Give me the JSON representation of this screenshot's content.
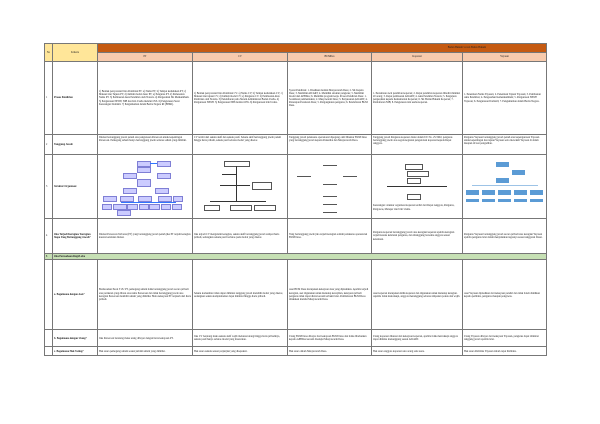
{
  "title": "Badan Hukum vs non Badan Hukum",
  "headers": {
    "no": "No",
    "criteria": "Kriteria",
    "cols": [
      "PT",
      "CV",
      "BUMDes",
      "Koperasi",
      "Yayasan"
    ]
  },
  "rows": [
    {
      "no": "1",
      "criteria": "Proses Pendirian",
      "cells": [
        "1) Bentuk persyaratan Data Pendirian PT: a) Nama PT; b) Tempat kedudukan PT; c) Maksud dan Tujuan PT; d) Jumlah modal dasar PT; e) Pengurus PT. 2) Pemesanan Nama PT. 3) Pembuatan Akta Pendirian oleh Notaris. 4) Pengesahan SK Menkumham. 5) Pengurusan NPWP, NIB dan Izin Usaha melalui OSS. 6) Pengurusan Surat Keterangan Domisili. 7) Pengumuman dalam Berita Negara RI (BNRI).",
        "1) Bentuk persyaratan Data Pendirian CV: a) Nama CV; b) Tempat kedudukan CV; c) Maksud dan tujuan CV; d) Jumlah modal CV; e) Pengurus CV. 2) Pembuatan Akta Pendirian oleh Notaris. 3) Pendaftaran pada Sistem Administrasi Badan Usaha. 4) Pengurusan NPWP. 5) Pengurusan NIB melalui OSS. 6) Pengurusan Izin Usaha.",
        "Syarat Pendirian: 1. Disahkan melalui Musyawarah Desa; 2. SK Kepala Desa; 3. Memiliki AD/ART; 4. Memiliki struktur pengurus; 5. Memiliki modal dari APBDes; 6. Memiliki program kerja. Proses Pendirian Desa: 1. Sosialisasi pembentukan; 2. Musyawarah Desa; 3. Penyusunan AD/ART; 4. Penetapan Peraturan Desa; 5. Pengangkatan pengurus; 6. Pendaftaran BUM Desa.",
        "1. Pertemuan awal pendirian koperasi; 2. Rapat pendirian koperasi dihadiri minimal 20 orang; 3. Rapat pembuatan AD/ART; 4. Akta Pendirian Notaris; 5. Pengajuan pengesahan kepada Kementerian Koperasi; 6. SK Badan Hukum Koperasi; 7. Pendaftaran NIB; 8. Pengurusan izin usaha koperasi.",
        "1. Penentuan Nama Yayasan; 2. Penentuan Tujuan Yayasan; 3. Pembuatan Akta Pendirian; 4. Pengesahan Kemenkumham; 5. Pengurusan NPWP Yayasan; 6. Pengurusan Domisili; 7. Pengumuman dalam Berita Negara."
      ]
    },
    {
      "no": "2",
      "criteria": "Tanggung Jawab",
      "cells": [
        "Direksi bertanggung jawab penuh atas pengurusan Perseroan untuk kepentingan Perseroan. Pemegang saham hanya bertanggung jawab sebatas saham yang dimiliki.",
        "CV terdiri dari sekutu aktif dan sekutu pasif. Sekutu aktif bertanggung jawab penuh hingga harta pribadi, sekutu pasif sebatas modal yang disetor.",
        "Tanggung jawab pelaksana operasional dipegang oleh Direktur BUM Desa yang bertanggung jawab kepada Penasihat dan Musyawarah Desa.",
        "Tanggung jawab Pengurus koperasi diatur dalam UU No. 25/1992, pengurus bertanggung jawab atas segala kegiatan pengelolaan koperasi kepada Rapat Anggota.",
        "Pengurus Yayasan bertanggung jawab penuh atas kepengurusan Yayasan untuk kepentingan dan tujuan Yayasan serta mewakili Yayasan di dalam maupun di luar pengadilan."
      ]
    },
    {
      "no": "3",
      "criteria": "Struktur Organisasi",
      "cells": [
        "",
        "",
        "",
        "Keterangan: struktur organisasi koperasi terdiri dari Rapat Anggota, Pengurus, Pengawas, Manajer dan Unit Usaha.",
        ""
      ]
    },
    {
      "no": "4",
      "criteria": "Jika Terjadi Kerugian/ Kerugian Siapa Yang Bertanggung Jawab?",
      "cells": [
        "Direksi Perseroan Terbatas (PT) yang bertanggung jawab penuh jika PT terjadi kerugian karena kelalaian direksi.",
        "Jika terjadi CV mengalami kerugian, sekutu aktif bertanggung jawab sampai harta pribadi, sedangkan sekutu pasif terbatas pada modal yang disetor.",
        "Yang bertanggung jawab jika terjadi kerugian adalah pelaksana operasional BUM Desa.",
        "Pengurus koperasi bertanggung jawab atas kerugian koperasi apabila kerugian terjadi karena kelalaian pengurus, dan ditanggung bersama anggota sesuai ketentuan.",
        "Pengurus Yayasan bertanggung jawab secara pribadi atas kerugian Yayasan apabila pengurus lalai dalam menjalankan tugasnya sesuai Anggaran Dasar."
      ]
    }
  ],
  "section": {
    "no": "5",
    "label": "Jika Perusahaan Rugi/Laba"
  },
  "subrows": [
    {
      "criteria": "a. Bagaimana dengan Aset?",
      "cells": [
        "Berdasarkan Pasal 3 UU PT, pemegang saham tidak bertanggung jawab secara pribadi atas perikatan yang dibuat atas nama Perseroan dan tidak bertanggung jawab atas kerugian Perseroan melebihi saham yang dimiliki. Harta kekayaan PT terpisah dari harta pribadi.",
        "Sekutu komanditer tidak dapat dimintai tanggung jawab melebihi modal yang disetor, sedangkan sekutu komplementer dapat dimintai hingga harta pribadi.",
        "Aset BUM Desa merupakan kekayaan desa yang dipisahkan. Apabila terjadi kerugian, aset digunakan untuk menutup kewajiban, kekayaan pribadi pengurus tidak dapat disita kecuali terbukti lalai. Pembubaran BUM Desa dilakukan melalui Musyawarah Desa.",
        "Aset koperasi merupakan milik koperasi dan digunakan untuk menutup kerugian. Apabila tidak mencukupi, anggota menanggung sebatas simpanan pokok dan wajib.",
        "Aset Yayasan dipisahkan dari kekayaan pendiri dan tidak boleh dialihkan kepada pembina, pengurus maupun pengawas."
      ]
    },
    {
      "criteria": "b. Bagaimana dengan Utang?",
      "cells": [
        "Jika Perseroan berutang maka utang dibayar dengan harta kekayaan PT.",
        "Jika CV berutang maka sekutu aktif wajib melunasi utang hingga harta pribadinya, sekutu pasif hanya sebatas modal yang disetorkan.",
        "Utang BUM Desa dibayar dari kekayaan BUM Desa dan tidak dibebankan kepada APBDes kecuali disetujui Musyawarah Desa.",
        "Utang koperasi dilunasi dari kekayaan koperasi, apabila tidak mencukupi anggota dapat diminta menanggung sesuai AD/ART.",
        "Utang Yayasan dibayar dari kekayaan Yayasan, pengurus dapat dimintai tanggung jawab apabila lalai."
      ]
    },
    {
      "criteria": "c. Bagaimana Hak Voting?",
      "cells": [
        "Hak suara pemegang saham sesuai jumlah saham yang dimiliki.",
        "Hak suara sekutu sesuai perjanjian yang disepakati.",
        "Hak suara dalam Musyawarah Desa.",
        "Hak suara anggota koperasi satu orang satu suara.",
        "Hak suara Pembina Yayasan dalam rapat Pembina."
      ]
    }
  ],
  "colors": {
    "header": "#c55a11",
    "subheader": "#f8cbad",
    "criteria_header": "#ffe699",
    "section": "#c6e0b4",
    "org_box": "#ccccff",
    "org_blue": "#5b9bd5"
  }
}
